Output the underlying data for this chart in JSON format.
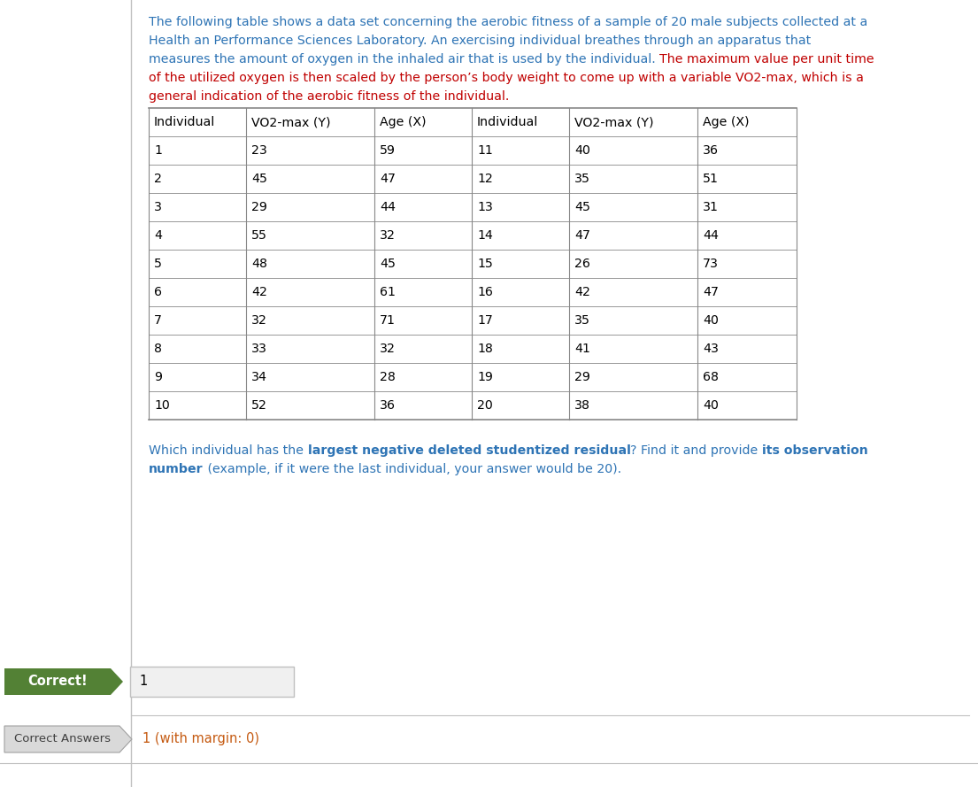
{
  "table_headers": [
    "Individual",
    "VO2-max (Y)",
    "Age (X)",
    "Individual",
    "VO2-max (Y)",
    "Age (X)"
  ],
  "table_data_left": [
    [
      "1",
      "23",
      "59"
    ],
    [
      "2",
      "45",
      "47"
    ],
    [
      "3",
      "29",
      "44"
    ],
    [
      "4",
      "55",
      "32"
    ],
    [
      "5",
      "48",
      "45"
    ],
    [
      "6",
      "42",
      "61"
    ],
    [
      "7",
      "32",
      "71"
    ],
    [
      "8",
      "33",
      "32"
    ],
    [
      "9",
      "34",
      "28"
    ],
    [
      "10",
      "52",
      "36"
    ]
  ],
  "table_data_right": [
    [
      "11",
      "40",
      "36"
    ],
    [
      "12",
      "35",
      "51"
    ],
    [
      "13",
      "45",
      "31"
    ],
    [
      "14",
      "47",
      "44"
    ],
    [
      "15",
      "26",
      "73"
    ],
    [
      "16",
      "42",
      "47"
    ],
    [
      "17",
      "35",
      "40"
    ],
    [
      "18",
      "41",
      "43"
    ],
    [
      "19",
      "29",
      "68"
    ],
    [
      "20",
      "38",
      "40"
    ]
  ],
  "correct_label": "Correct!",
  "correct_bg": "#538135",
  "answer_value": "1",
  "answer_box_bg": "#f0f0f0",
  "answer_box_border": "#c0c0c0",
  "correct_answers_label": "Correct Answers",
  "correct_answers_bg": "#d9d9d9",
  "correct_answers_arrow_color": "#bfbfbf",
  "correct_answers_text": "1 (with margin: 0)",
  "correct_answers_text_color": "#c55a11",
  "bg_color": "#ffffff",
  "divider_color": "#c0c0c0",
  "left_panel_color": "#ffffff",
  "vertical_divider_color": "#c0c0c0",
  "blue": "#2e74b5",
  "red": "#c00000",
  "black": "#000000",
  "para_line1": "The following table shows a data set concerning the aerobic fitness of a sample of 20 male subjects collected at a",
  "para_line2": "Health an Performance Sciences Laboratory. An exercising individual breathes through an apparatus that",
  "para_line3_blue": "measures the amount of oxygen in the inhaled air that is used by the individual. ",
  "para_line3_red": "The maximum value per unit time",
  "para_line4": "of the utilized oxygen is then scaled by the person’s body weight to come up with a variable VO2-max, which is a",
  "para_line5": "general indication of the aerobic fitness of the individual.",
  "q_line1_p1": "Which individual has the ",
  "q_line1_p2": "largest negative deleted studentized residual",
  "q_line1_p3": "? Find it and provide ",
  "q_line1_p4": "its observation",
  "q_line2_p1": "number",
  "q_line2_p2": " (example, if it were the last individual, your answer would be 20)."
}
